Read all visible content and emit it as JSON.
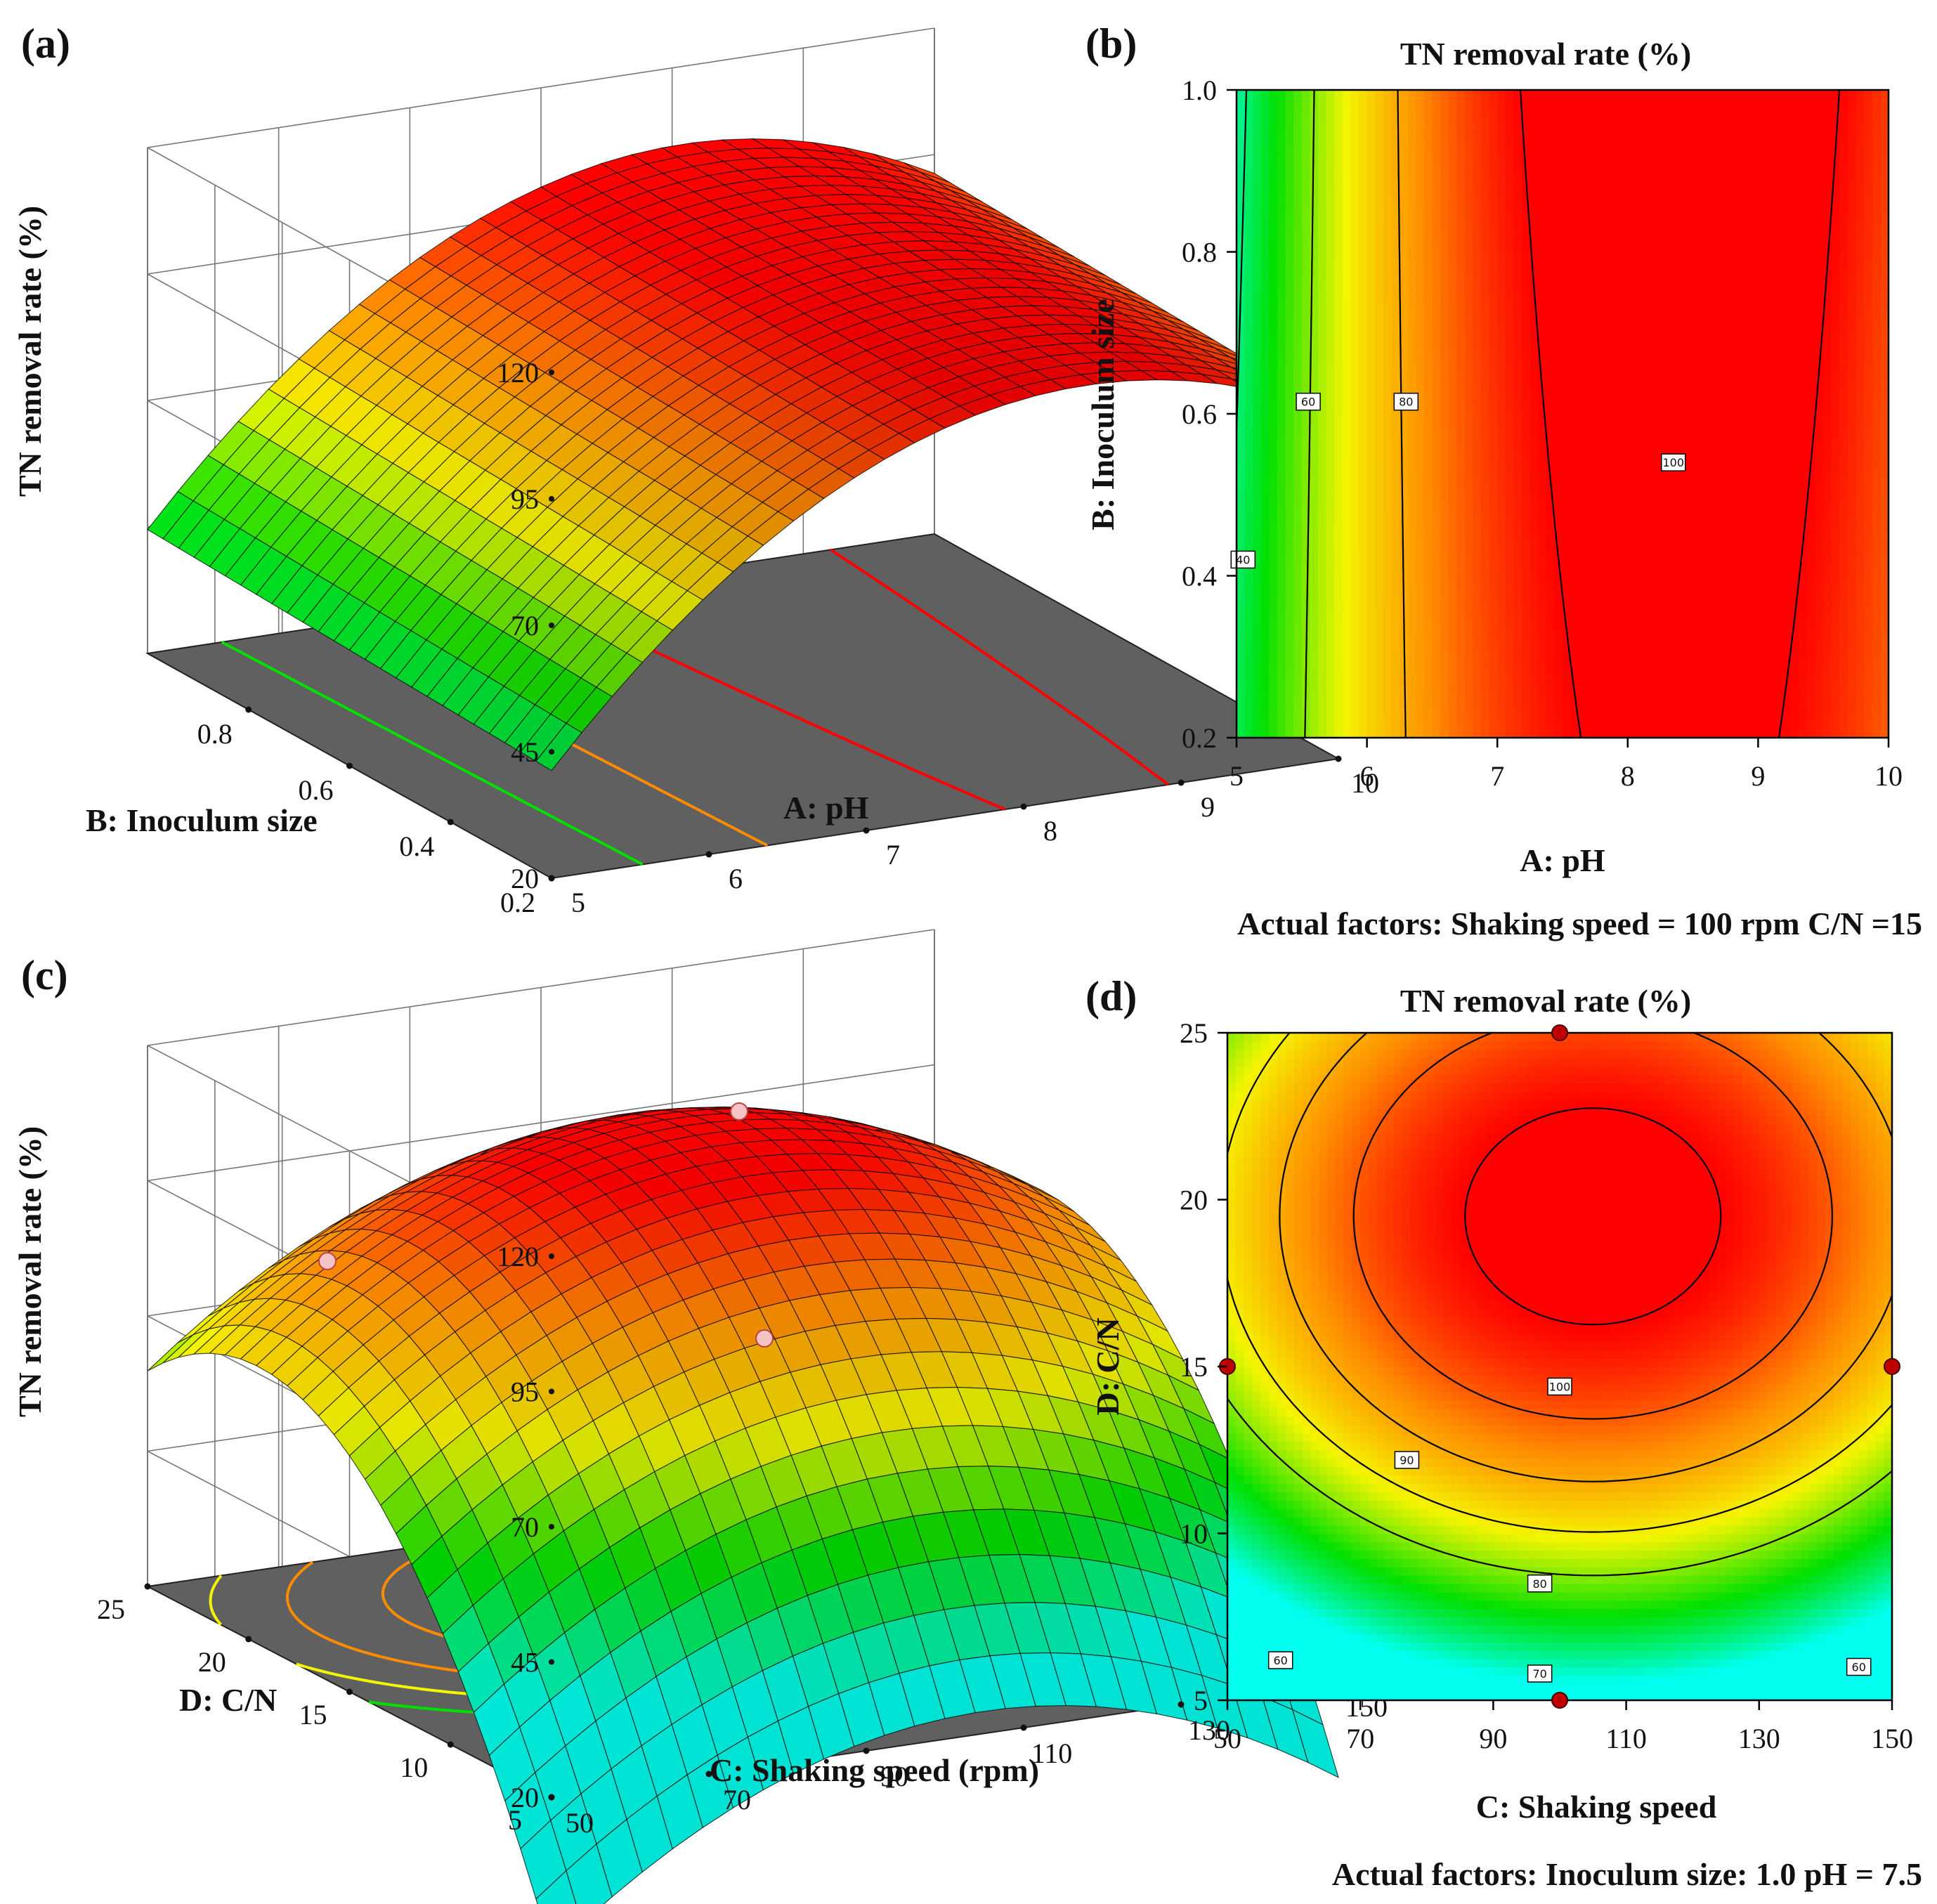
{
  "panels": {
    "a": {
      "label": "(a)"
    },
    "b": {
      "label": "(b)",
      "note": "Actual factors: Shaking speed = 100 rpm C/N =15"
    },
    "c": {
      "label": "(c)"
    },
    "d": {
      "label": "(d)",
      "note": "Actual factors:    Inoculum size: 1.0    pH = 7.5"
    }
  },
  "colors": {
    "red": "#ff0000",
    "orange": "#ff8c00",
    "yellow": "#f5f500",
    "green": "#00e000",
    "cyan": "#00ffee",
    "floor": "#606060"
  },
  "chart_data": [
    {
      "id": "a",
      "type": "surface3d",
      "zlabel": "TN removal rate (%)",
      "z_ticks": [
        "20",
        "45",
        "70",
        "95",
        "120"
      ],
      "xlabel": "A: pH",
      "x_ticks": [
        "5",
        "6",
        "7",
        "8",
        "9",
        "10"
      ],
      "ylabel": "B: Inoculum size",
      "y_ticks": [
        "0.2",
        "0.4",
        "0.6",
        "0.8"
      ],
      "xlim": [
        5,
        10
      ],
      "ylim": [
        0.2,
        1.0
      ],
      "zlim": [
        20,
        120
      ]
    },
    {
      "id": "b",
      "type": "contour",
      "title": "TN removal rate (%)",
      "xlabel": "A: pH",
      "ylabel": "B: Inoculum size",
      "x_ticks": [
        "5",
        "6",
        "7",
        "8",
        "9",
        "10"
      ],
      "y_ticks": [
        "0.2",
        "0.4",
        "0.6",
        "0.8",
        "1.0"
      ],
      "xlim": [
        5,
        10
      ],
      "ylim": [
        0.2,
        1.0
      ],
      "contour_labels": [
        "40",
        "60",
        "80",
        "100"
      ]
    },
    {
      "id": "c",
      "type": "surface3d",
      "zlabel": "TN removal rate (%)",
      "z_ticks": [
        "20",
        "45",
        "70",
        "95",
        "120"
      ],
      "xlabel": "C:  Shaking speed (rpm)",
      "x_ticks": [
        "50",
        "70",
        "90",
        "110",
        "130",
        "150"
      ],
      "ylabel": "D: C/N",
      "y_ticks": [
        "5",
        "10",
        "15",
        "20",
        "25"
      ],
      "xlim": [
        50,
        150
      ],
      "ylim": [
        5,
        25
      ],
      "zlim": [
        20,
        120
      ]
    },
    {
      "id": "d",
      "type": "contour",
      "title": "TN removal rate (%)",
      "xlabel": "C: Shaking speed",
      "ylabel": "D: C/N",
      "x_ticks": [
        "50",
        "70",
        "90",
        "110",
        "130",
        "150"
      ],
      "y_ticks": [
        "5",
        "10",
        "15",
        "20",
        "25"
      ],
      "xlim": [
        50,
        150
      ],
      "ylim": [
        5,
        25
      ],
      "contour_labels": [
        "60",
        "70",
        "80",
        "90",
        "100",
        "60"
      ],
      "design_points": [
        [
          100,
          25
        ],
        [
          50,
          15
        ],
        [
          150,
          15
        ],
        [
          100,
          5
        ]
      ]
    }
  ]
}
